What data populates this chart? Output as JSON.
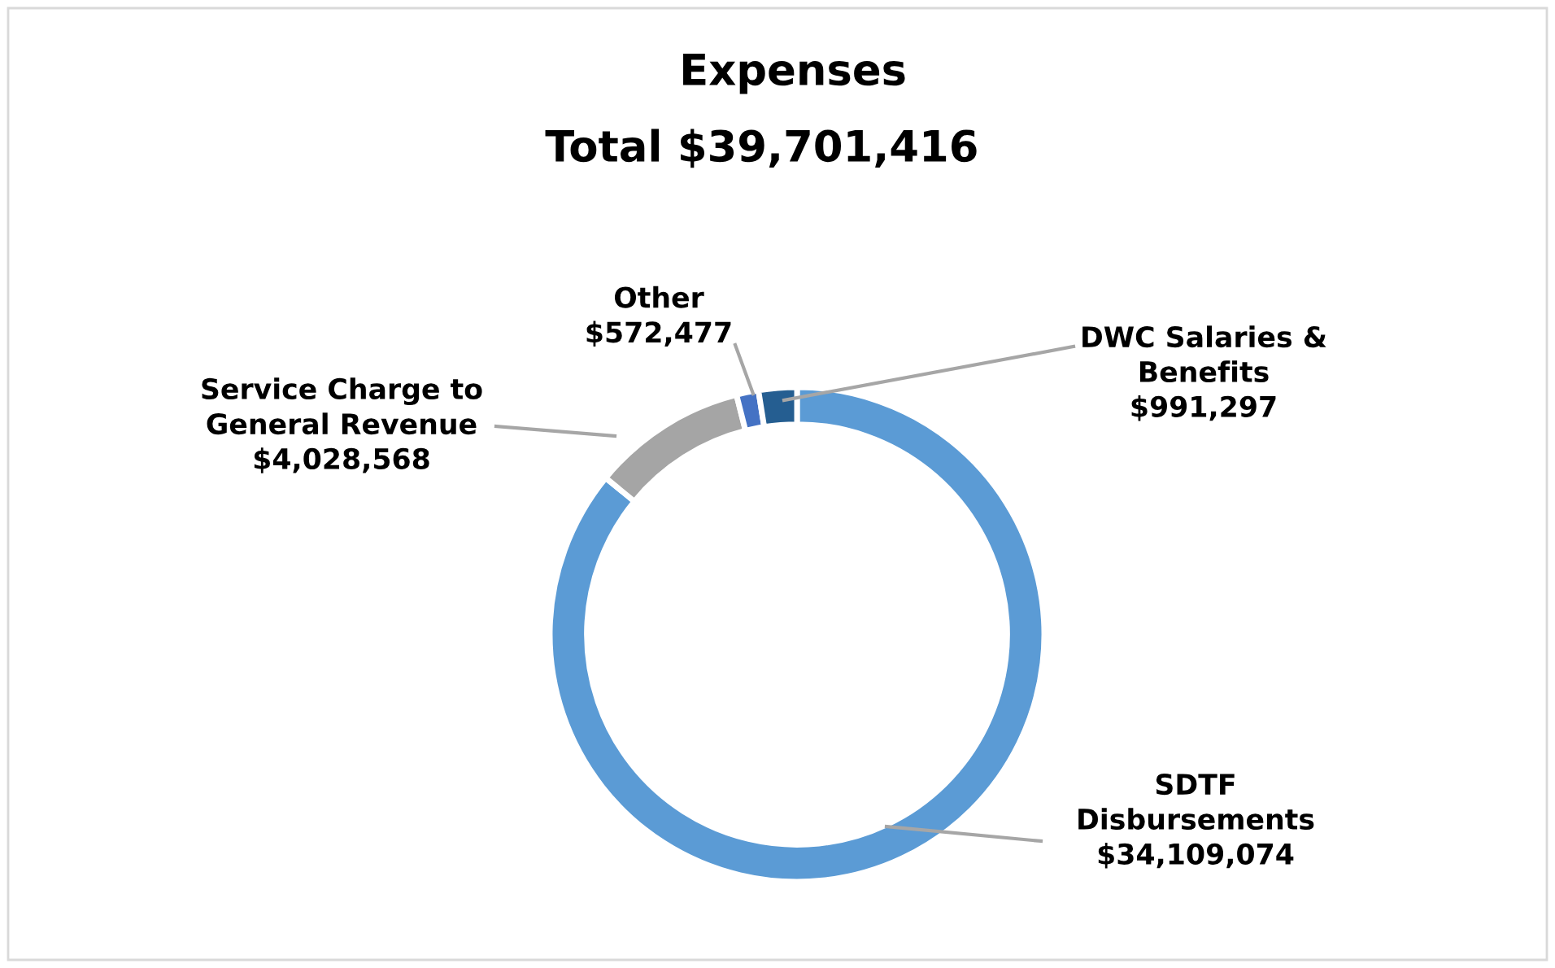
{
  "chart_data": {
    "type": "donut",
    "title": "Expenses",
    "subtitle": "Total $39,701,416",
    "categories": [
      "SDTF\nDisbursements",
      "Service Charge to\nGeneral Revenue",
      "Other",
      "DWC Salaries &\nBenefits"
    ],
    "values": [
      34109074,
      4028568,
      572477,
      991297
    ],
    "colors": [
      "#5b9bd5",
      "#a5a5a5",
      "#4472c4",
      "#255e91"
    ],
    "value_labels": [
      "$34,109,074",
      "$4,028,568",
      "$572,477",
      "$991,297"
    ],
    "legend": false
  }
}
